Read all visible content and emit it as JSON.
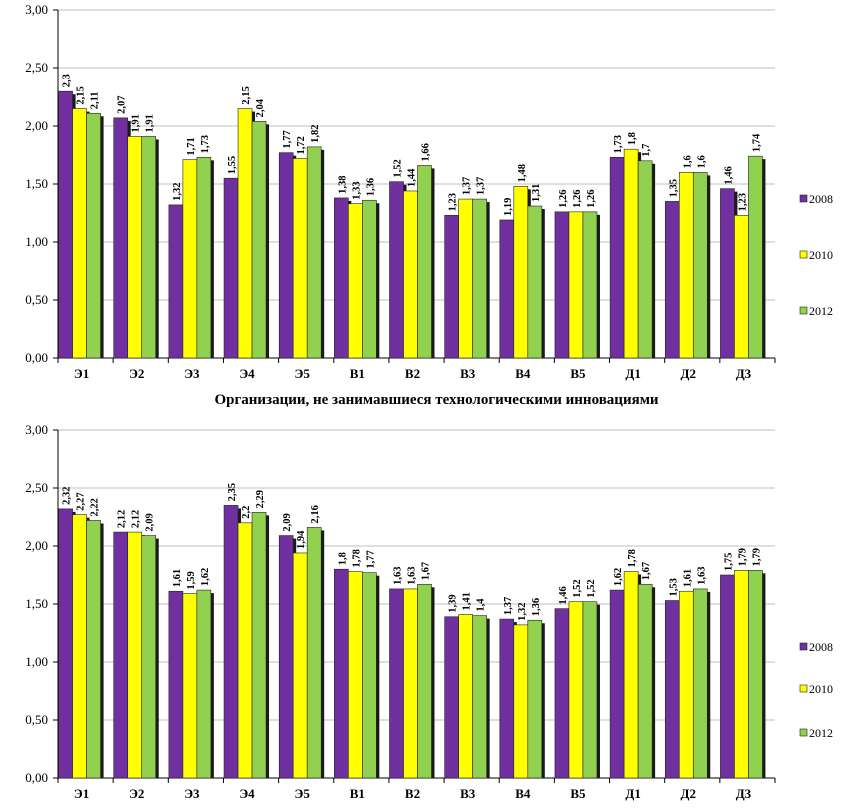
{
  "chart_data": [
    {
      "type": "bar",
      "title": "",
      "categories": [
        "Э1",
        "Э2",
        "Э3",
        "Э4",
        "Э5",
        "В1",
        "В2",
        "В3",
        "В4",
        "В5",
        "Д1",
        "Д2",
        "Д3"
      ],
      "ylim": [
        0,
        3
      ],
      "yticks": [
        "0,00",
        "0,50",
        "1,00",
        "1,50",
        "2,00",
        "2,50",
        "3,00"
      ],
      "grid": true,
      "legend_position": "right",
      "series": [
        {
          "name": "2008",
          "color": "#7030a0",
          "values": [
            2.3,
            2.07,
            1.32,
            1.55,
            1.77,
            1.38,
            1.52,
            1.23,
            1.19,
            1.26,
            1.73,
            1.35,
            1.46
          ],
          "labels": [
            "2,3",
            "2,07",
            "1,32",
            "1,55",
            "1,77",
            "1,38",
            "1,52",
            "1,23",
            "1,19",
            "1,26",
            "1,73",
            "1,35",
            "1,46"
          ]
        },
        {
          "name": "2010",
          "color": "#ffff00",
          "values": [
            2.15,
            1.91,
            1.71,
            2.15,
            1.72,
            1.33,
            1.44,
            1.37,
            1.48,
            1.26,
            1.8,
            1.6,
            1.23
          ],
          "labels": [
            "2,15",
            "1,91",
            "1,71",
            "2,15",
            "1,72",
            "1,33",
            "1,44",
            "1,37",
            "1,48",
            "1,26",
            "1,8",
            "1,6",
            "1,23"
          ]
        },
        {
          "name": "2012",
          "color": "#92d050",
          "values": [
            2.11,
            1.91,
            1.73,
            2.04,
            1.82,
            1.36,
            1.66,
            1.37,
            1.31,
            1.26,
            1.7,
            1.6,
            1.74
          ],
          "labels": [
            "2,11",
            "1,91",
            "1,73",
            "2,04",
            "1,82",
            "1,36",
            "1,66",
            "1,37",
            "1,31",
            "1,26",
            "1,7",
            "1,6",
            "1,74"
          ]
        }
      ]
    },
    {
      "type": "bar",
      "title": "Организации, не занимавшиеся технологическими инновациями",
      "categories": [
        "Э1",
        "Э2",
        "Э3",
        "Э4",
        "Э5",
        "В1",
        "В2",
        "В3",
        "В4",
        "В5",
        "Д1",
        "Д2",
        "Д3"
      ],
      "ylim": [
        0,
        3
      ],
      "yticks": [
        "0,00",
        "0,50",
        "1,00",
        "1,50",
        "2,00",
        "2,50",
        "3,00"
      ],
      "grid": true,
      "legend_position": "right",
      "series": [
        {
          "name": "2008",
          "color": "#7030a0",
          "values": [
            2.32,
            2.12,
            1.61,
            2.35,
            2.09,
            1.8,
            1.63,
            1.39,
            1.37,
            1.46,
            1.62,
            1.53,
            1.75
          ],
          "labels": [
            "2,32",
            "2,12",
            "1,61",
            "2,35",
            "2,09",
            "1,8",
            "1,63",
            "1,39",
            "1,37",
            "1,46",
            "1,62",
            "1,53",
            "1,75"
          ]
        },
        {
          "name": "2010",
          "color": "#ffff00",
          "values": [
            2.27,
            2.12,
            1.59,
            2.2,
            1.94,
            1.78,
            1.63,
            1.41,
            1.32,
            1.52,
            1.78,
            1.61,
            1.79
          ],
          "labels": [
            "2,27",
            "2,12",
            "1,59",
            "2,2",
            "1,94",
            "1,78",
            "1,63",
            "1,41",
            "1,32",
            "1,52",
            "1,78",
            "1,61",
            "1,79"
          ]
        },
        {
          "name": "2012",
          "color": "#92d050",
          "values": [
            2.22,
            2.09,
            1.62,
            2.29,
            2.16,
            1.77,
            1.67,
            1.4,
            1.36,
            1.52,
            1.67,
            1.63,
            1.79
          ],
          "labels": [
            "2,22",
            "2,09",
            "1,62",
            "2,29",
            "2,16",
            "1,77",
            "1,67",
            "1,4",
            "1,36",
            "1,52",
            "1,67",
            "1,63",
            "1,79"
          ]
        }
      ]
    }
  ]
}
